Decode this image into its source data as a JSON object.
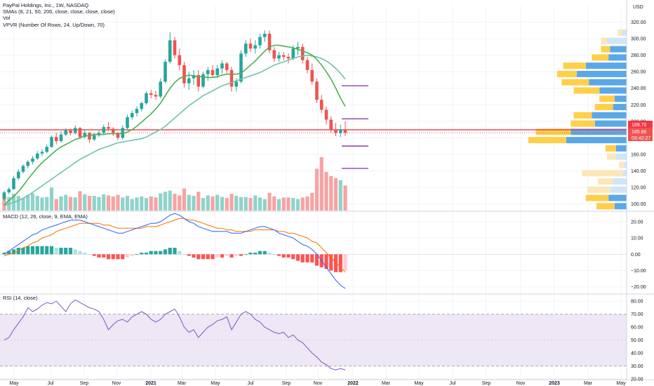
{
  "legend": {
    "title": "PayPal Holdings, Inc., 1W, NASDAQ",
    "smas": "SMAs (8, 21, 50, 200, close, close, close, close)",
    "vol": "Vol",
    "vpvr": "VPVR (Number Of Rows, 24, Up/Down, 70)",
    "macd": "MACD (12, 26, close, 9, EMA, EMA)",
    "rsi": "RSI (14, close)"
  },
  "currency": "USD",
  "price_tags": {
    "ma": "189.70",
    "last": "185.86",
    "countdown": "03:42:27"
  },
  "colors": {
    "up": "#26a69a",
    "down": "#ef5350",
    "sma8": "#4caf50",
    "sma21": "#6fc3a9",
    "vol_up": "#8fd3c9",
    "vol_down": "#f7a3a3",
    "macd_line": "#2962ff",
    "signal_line": "#ff6d00",
    "rsi_line": "#7e57c2",
    "rsi_band": "#ede7f6",
    "red_line": "#f23645",
    "vpvr_up": "#5ba8e8",
    "vpvr_down": "#ffcf4a",
    "vpvr_up_light": "#cfe6f7",
    "vpvr_down_light": "#fbe7b9",
    "target": "#6a1b9a"
  },
  "chart_data": [
    {
      "type": "candlestick",
      "title": "PayPal Holdings, Inc., 1W, NASDAQ",
      "ylim": [
        92,
        340
      ],
      "y_ticks": [
        100,
        120,
        140,
        160,
        180,
        200,
        220,
        240,
        260,
        280,
        300,
        320
      ],
      "y_tick_labels": [
        "100.00",
        "120.00",
        "140.00",
        "160.00",
        "180.00",
        "200.00",
        "220.00",
        "240.00",
        "260.00",
        "280.00",
        "300.00",
        "320.00"
      ],
      "x_tick_labels": [
        "May",
        "Jul",
        "Sep",
        "Nov",
        "2021",
        "Mar",
        "May",
        "Jul",
        "Sep",
        "Nov",
        "2022",
        "Mar",
        "May",
        "Jul",
        "Sep",
        "Nov",
        "2023",
        "Mar",
        "May"
      ],
      "candles": [
        [
          106,
          116,
          104,
          114
        ],
        [
          114,
          120,
          112,
          118
        ],
        [
          118,
          134,
          117,
          131
        ],
        [
          131,
          142,
          129,
          139
        ],
        [
          139,
          148,
          137,
          146
        ],
        [
          146,
          153,
          143,
          151
        ],
        [
          151,
          158,
          148,
          155
        ],
        [
          155,
          164,
          153,
          161
        ],
        [
          161,
          166,
          158,
          163
        ],
        [
          163,
          172,
          161,
          169
        ],
        [
          169,
          183,
          168,
          181
        ],
        [
          181,
          186,
          172,
          176
        ],
        [
          176,
          188,
          174,
          184
        ],
        [
          184,
          192,
          182,
          189
        ],
        [
          189,
          191,
          183,
          186
        ],
        [
          186,
          195,
          184,
          192
        ],
        [
          192,
          193,
          178,
          181
        ],
        [
          181,
          190,
          179,
          186
        ],
        [
          186,
          187,
          174,
          178
        ],
        [
          178,
          186,
          176,
          183
        ],
        [
          183,
          189,
          181,
          186
        ],
        [
          186,
          196,
          184,
          193
        ],
        [
          193,
          199,
          188,
          191
        ],
        [
          191,
          193,
          182,
          186
        ],
        [
          186,
          187,
          177,
          180
        ],
        [
          180,
          195,
          178,
          192
        ],
        [
          192,
          208,
          190,
          205
        ],
        [
          205,
          213,
          202,
          210
        ],
        [
          210,
          218,
          206,
          215
        ],
        [
          215,
          224,
          212,
          222
        ],
        [
          222,
          236,
          220,
          234
        ],
        [
          234,
          238,
          228,
          232
        ],
        [
          232,
          237,
          226,
          230
        ],
        [
          230,
          252,
          228,
          248
        ],
        [
          248,
          275,
          246,
          272
        ],
        [
          272,
          308,
          270,
          298
        ],
        [
          298,
          302,
          276,
          280
        ],
        [
          280,
          288,
          262,
          268
        ],
        [
          268,
          272,
          241,
          246
        ],
        [
          246,
          260,
          238,
          252
        ],
        [
          252,
          262,
          244,
          256
        ],
        [
          256,
          262,
          236,
          242
        ],
        [
          242,
          260,
          240,
          257
        ],
        [
          257,
          266,
          249,
          262
        ],
        [
          262,
          268,
          253,
          256
        ],
        [
          256,
          268,
          252,
          264
        ],
        [
          264,
          274,
          258,
          270
        ],
        [
          270,
          272,
          258,
          262
        ],
        [
          262,
          266,
          236,
          242
        ],
        [
          242,
          252,
          236,
          248
        ],
        [
          248,
          286,
          246,
          282
        ],
        [
          282,
          298,
          278,
          294
        ],
        [
          294,
          300,
          284,
          288
        ],
        [
          288,
          298,
          282,
          292
        ],
        [
          292,
          306,
          288,
          302
        ],
        [
          302,
          310,
          296,
          306
        ],
        [
          306,
          310,
          282,
          286
        ],
        [
          286,
          290,
          272,
          276
        ],
        [
          276,
          284,
          272,
          280
        ],
        [
          280,
          284,
          274,
          278
        ],
        [
          278,
          282,
          270,
          276
        ],
        [
          276,
          292,
          274,
          288
        ],
        [
          288,
          296,
          280,
          290
        ],
        [
          290,
          294,
          270,
          274
        ],
        [
          274,
          278,
          258,
          262
        ],
        [
          262,
          270,
          244,
          248
        ],
        [
          248,
          252,
          222,
          226
        ],
        [
          226,
          232,
          210,
          214
        ],
        [
          214,
          218,
          196,
          202
        ],
        [
          202,
          206,
          186,
          190
        ],
        [
          190,
          198,
          182,
          186
        ],
        [
          186,
          196,
          181,
          190
        ],
        [
          190,
          200,
          182,
          186
        ]
      ],
      "sma8": [
        99,
        104,
        109,
        115,
        122,
        130,
        137,
        144,
        150,
        155,
        160,
        165,
        169,
        172,
        175,
        178,
        180,
        182,
        183,
        184,
        184,
        184,
        185,
        185,
        185,
        185,
        187,
        190,
        194,
        199,
        204,
        209,
        215,
        222,
        231,
        240,
        247,
        252,
        254,
        256,
        255,
        254,
        254,
        253,
        253,
        254,
        256,
        257,
        257,
        257,
        258,
        263,
        268,
        273,
        279,
        285,
        290,
        292,
        292,
        291,
        290,
        289,
        287,
        285,
        283,
        280,
        275,
        268,
        260,
        251,
        240,
        228,
        218
      ],
      "sma21": [
        98,
        100,
        102,
        104,
        107,
        110,
        114,
        118,
        122,
        126,
        130,
        134,
        138,
        142,
        146,
        150,
        154,
        157,
        160,
        163,
        166,
        168,
        170,
        172,
        174,
        175,
        176,
        177,
        178,
        179,
        181,
        184,
        187,
        190,
        194,
        199,
        204,
        209,
        214,
        219,
        223,
        227,
        231,
        234,
        237,
        240,
        243,
        245,
        247,
        249,
        251,
        253,
        255,
        257,
        259,
        262,
        265,
        268,
        270,
        272,
        274,
        276,
        278,
        279,
        280,
        279,
        278,
        276,
        273,
        269,
        264,
        258,
        251
      ]
    },
    {
      "type": "bar",
      "title": "Vol",
      "up": [
        false,
        true,
        true,
        true,
        true,
        true,
        true,
        true,
        true,
        true,
        true,
        false,
        true,
        true,
        false,
        true,
        false,
        true,
        false,
        true,
        true,
        true,
        false,
        false,
        false,
        true,
        true,
        true,
        true,
        true,
        true,
        false,
        false,
        true,
        true,
        true,
        false,
        false,
        false,
        true,
        true,
        false,
        true,
        true,
        false,
        true,
        true,
        false,
        false,
        true,
        true,
        true,
        false,
        true,
        true,
        true,
        false,
        false,
        true,
        false,
        false,
        true,
        true,
        false,
        false,
        false,
        false,
        false,
        false,
        false,
        false,
        true,
        false
      ],
      "values": [
        30,
        26,
        32,
        28,
        24,
        30,
        33,
        28,
        25,
        26,
        44,
        22,
        27,
        30,
        26,
        25,
        37,
        31,
        28,
        28,
        26,
        31,
        29,
        27,
        30,
        25,
        28,
        22,
        25,
        27,
        24,
        27,
        25,
        33,
        36,
        38,
        32,
        29,
        42,
        30,
        28,
        36,
        24,
        29,
        27,
        30,
        26,
        24,
        32,
        28,
        26,
        26,
        24,
        29,
        25,
        22,
        34,
        27,
        22,
        25,
        25,
        24,
        22,
        25,
        27,
        34,
        80,
        102,
        74,
        66,
        62,
        58,
        48
      ]
    },
    {
      "type": "bar",
      "title": "VPVR (Number Of Rows, 24, Up/Down, 70)",
      "price_bins": [
        97,
        107,
        117,
        127,
        137,
        147,
        157,
        167,
        177,
        187,
        197,
        207,
        217,
        227,
        237,
        247,
        257,
        267,
        277,
        287,
        297,
        307
      ],
      "up_volume": [
        16,
        24,
        22,
        18,
        5,
        4,
        14,
        14,
        80,
        74,
        42,
        46,
        18,
        16,
        36,
        50,
        66,
        54,
        24,
        22,
        26,
        6
      ],
      "down_volume": [
        24,
        30,
        30,
        20,
        54,
        6,
        12,
        14,
        50,
        46,
        32,
        24,
        24,
        20,
        34,
        36,
        26,
        30,
        22,
        12,
        8,
        6
      ]
    },
    {
      "type": "line",
      "title": "MACD (12, 26, close, 9, EMA, EMA)",
      "ylim": [
        -24,
        26
      ],
      "y_ticks": [
        -20,
        -10,
        0,
        10,
        20
      ],
      "y_tick_labels": [
        "−20.00",
        "−10.00",
        "0.00",
        "10.00",
        "20.00"
      ],
      "macd": [
        0,
        2,
        4,
        6,
        8,
        10,
        12,
        13,
        15,
        16,
        17,
        18,
        19,
        20,
        21,
        21,
        21,
        20,
        19,
        18,
        17,
        16,
        15,
        14,
        13,
        13,
        14,
        15,
        16,
        17,
        18,
        19,
        19,
        20,
        22,
        24,
        25,
        24,
        22,
        20,
        19,
        17,
        16,
        15,
        14,
        14,
        14,
        14,
        13,
        13,
        13,
        14,
        15,
        16,
        17,
        17,
        16,
        15,
        13,
        12,
        11,
        10,
        8,
        6,
        5,
        3,
        0,
        -4,
        -8,
        -12,
        -16,
        -19,
        -21
      ],
      "signal": [
        -1,
        0,
        1,
        2,
        4,
        5,
        7,
        8,
        10,
        11,
        12,
        14,
        15,
        16,
        17,
        18,
        19,
        19,
        19,
        19,
        19,
        18,
        18,
        17,
        16,
        16,
        16,
        16,
        16,
        16,
        17,
        17,
        17,
        18,
        19,
        20,
        21,
        22,
        22,
        21,
        21,
        20,
        19,
        18,
        17,
        16,
        16,
        15,
        15,
        14,
        14,
        14,
        14,
        15,
        15,
        15,
        15,
        15,
        14,
        14,
        13,
        13,
        12,
        11,
        10,
        8,
        7,
        4,
        1,
        -2,
        -5,
        -8,
        -11
      ],
      "histogram": [
        1,
        2,
        3,
        4,
        4,
        5,
        5,
        5,
        5,
        5,
        5,
        4,
        4,
        4,
        4,
        3,
        2,
        1,
        0,
        -1,
        -2,
        -2,
        -3,
        -3,
        -3,
        -3,
        -2,
        -1,
        0,
        1,
        1,
        2,
        2,
        2,
        3,
        4,
        4,
        2,
        0,
        -1,
        -2,
        -3,
        -3,
        -3,
        -3,
        -2,
        -2,
        -1,
        -2,
        -1,
        -1,
        0,
        1,
        1,
        2,
        2,
        1,
        0,
        -1,
        -2,
        -2,
        -3,
        -4,
        -5,
        -5,
        -5,
        -7,
        -8,
        -9,
        -10,
        -11,
        -11,
        -10
      ]
    },
    {
      "type": "line",
      "title": "RSI (14, close)",
      "ylim": [
        20,
        85
      ],
      "y_ticks": [
        20,
        30,
        40,
        50,
        60,
        70,
        80
      ],
      "y_tick_labels": [
        "20.00",
        "30.00",
        "40.00",
        "50.00",
        "60.00",
        "70.00",
        "80.00"
      ],
      "band": [
        30,
        70
      ],
      "values": [
        50,
        52,
        58,
        63,
        68,
        75,
        72,
        74,
        77,
        79,
        78,
        80,
        76,
        72,
        78,
        81,
        79,
        77,
        75,
        74,
        72,
        66,
        58,
        62,
        65,
        66,
        64,
        68,
        70,
        72,
        70,
        66,
        64,
        66,
        70,
        72,
        74,
        68,
        60,
        56,
        58,
        52,
        56,
        60,
        62,
        65,
        66,
        68,
        58,
        64,
        70,
        72,
        70,
        66,
        64,
        60,
        58,
        56,
        55,
        56,
        52,
        54,
        50,
        48,
        44,
        40,
        37,
        33,
        31,
        28,
        27,
        28,
        27
      ]
    }
  ]
}
